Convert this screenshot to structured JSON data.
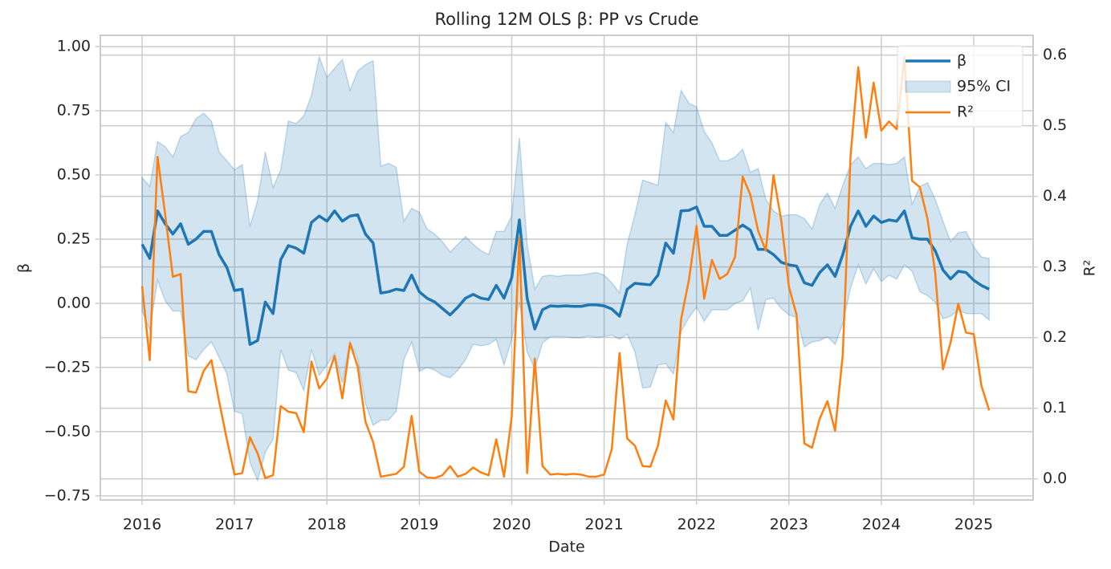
{
  "chart_data": {
    "type": "line",
    "title": "Rolling 12M OLS β: PP vs Crude",
    "xlabel": "Date",
    "ylabel": "β",
    "y2label": "R²",
    "x": [
      2016.0,
      2016.083,
      2016.167,
      2016.25,
      2016.333,
      2016.417,
      2016.5,
      2016.583,
      2016.667,
      2016.75,
      2016.833,
      2016.917,
      2017.0,
      2017.083,
      2017.167,
      2017.25,
      2017.333,
      2017.417,
      2017.5,
      2017.583,
      2017.667,
      2017.75,
      2017.833,
      2017.917,
      2018.0,
      2018.083,
      2018.167,
      2018.25,
      2018.333,
      2018.417,
      2018.5,
      2018.583,
      2018.667,
      2018.75,
      2018.833,
      2018.917,
      2019.0,
      2019.083,
      2019.167,
      2019.25,
      2019.333,
      2019.417,
      2019.5,
      2019.583,
      2019.667,
      2019.75,
      2019.833,
      2019.917,
      2020.0,
      2020.083,
      2020.167,
      2020.25,
      2020.333,
      2020.417,
      2020.5,
      2020.583,
      2020.667,
      2020.75,
      2020.833,
      2020.917,
      2021.0,
      2021.083,
      2021.167,
      2021.25,
      2021.333,
      2021.417,
      2021.5,
      2021.583,
      2021.667,
      2021.75,
      2021.833,
      2021.917,
      2022.0,
      2022.083,
      2022.167,
      2022.25,
      2022.333,
      2022.417,
      2022.5,
      2022.583,
      2022.667,
      2022.75,
      2022.833,
      2022.917,
      2023.0,
      2023.083,
      2023.167,
      2023.25,
      2023.333,
      2023.417,
      2023.5,
      2023.583,
      2023.667,
      2023.75,
      2023.833,
      2023.917,
      2024.0,
      2024.083,
      2024.167,
      2024.25,
      2024.333,
      2024.417,
      2024.5,
      2024.583,
      2024.667,
      2024.75,
      2024.833,
      2024.917,
      2025.0,
      2025.083,
      2025.167
    ],
    "series": [
      {
        "name": "β",
        "color": "#1f77b4",
        "values": [
          0.23,
          0.175,
          0.36,
          0.31,
          0.27,
          0.31,
          0.23,
          0.25,
          0.28,
          0.28,
          0.19,
          0.14,
          0.05,
          0.055,
          -0.16,
          -0.145,
          0.005,
          -0.04,
          0.17,
          0.225,
          0.215,
          0.195,
          0.315,
          0.34,
          0.32,
          0.36,
          0.32,
          0.34,
          0.345,
          0.27,
          0.235,
          0.04,
          0.045,
          0.055,
          0.05,
          0.11,
          0.045,
          0.02,
          0.005,
          -0.02,
          -0.045,
          -0.015,
          0.02,
          0.035,
          0.02,
          0.015,
          0.07,
          0.02,
          0.1,
          0.325,
          0.02,
          -0.1,
          -0.025,
          -0.01,
          -0.012,
          -0.01,
          -0.012,
          -0.012,
          -0.006,
          -0.006,
          -0.01,
          -0.022,
          -0.05,
          0.055,
          0.078,
          0.075,
          0.072,
          0.11,
          0.235,
          0.195,
          0.36,
          0.362,
          0.375,
          0.3,
          0.3,
          0.265,
          0.265,
          0.285,
          0.305,
          0.285,
          0.21,
          0.21,
          0.19,
          0.16,
          0.15,
          0.145,
          0.08,
          0.07,
          0.12,
          0.15,
          0.105,
          0.19,
          0.3,
          0.36,
          0.3,
          0.34,
          0.315,
          0.325,
          0.32,
          0.36,
          0.255,
          0.25,
          0.25,
          0.205,
          0.13,
          0.095,
          0.125,
          0.12,
          0.09,
          0.07,
          0.055
        ]
      },
      {
        "name": "95% CI",
        "color": "#1f77b4",
        "upper": [
          0.49,
          0.455,
          0.63,
          0.61,
          0.57,
          0.65,
          0.665,
          0.72,
          0.74,
          0.71,
          0.59,
          0.555,
          0.52,
          0.54,
          0.3,
          0.4,
          0.59,
          0.45,
          0.52,
          0.71,
          0.7,
          0.73,
          0.81,
          0.96,
          0.88,
          0.915,
          0.95,
          0.83,
          0.905,
          0.93,
          0.945,
          0.535,
          0.545,
          0.53,
          0.32,
          0.37,
          0.355,
          0.29,
          0.27,
          0.24,
          0.2,
          0.23,
          0.26,
          0.23,
          0.205,
          0.19,
          0.28,
          0.28,
          0.34,
          0.645,
          0.23,
          0.055,
          0.105,
          0.11,
          0.105,
          0.11,
          0.11,
          0.11,
          0.115,
          0.12,
          0.11,
          0.08,
          0.04,
          0.23,
          0.345,
          0.48,
          0.47,
          0.46,
          0.705,
          0.665,
          0.83,
          0.78,
          0.765,
          0.67,
          0.625,
          0.555,
          0.555,
          0.57,
          0.6,
          0.51,
          0.525,
          0.405,
          0.36,
          0.34,
          0.345,
          0.345,
          0.33,
          0.29,
          0.385,
          0.43,
          0.37,
          0.46,
          0.54,
          0.57,
          0.525,
          0.545,
          0.545,
          0.54,
          0.545,
          0.57,
          0.385,
          0.455,
          0.47,
          0.405,
          0.32,
          0.24,
          0.275,
          0.28,
          0.22,
          0.18,
          0.175
        ],
        "lower": [
          -0.03,
          -0.105,
          0.09,
          0.01,
          -0.03,
          -0.03,
          -0.205,
          -0.22,
          -0.18,
          -0.15,
          -0.21,
          -0.275,
          -0.42,
          -0.43,
          -0.62,
          -0.69,
          -0.58,
          -0.53,
          -0.18,
          -0.26,
          -0.27,
          -0.34,
          -0.18,
          -0.28,
          -0.24,
          -0.195,
          -0.31,
          -0.15,
          -0.215,
          -0.39,
          -0.475,
          -0.455,
          -0.455,
          -0.42,
          -0.22,
          -0.15,
          -0.265,
          -0.25,
          -0.26,
          -0.28,
          -0.29,
          -0.26,
          -0.22,
          -0.16,
          -0.165,
          -0.16,
          -0.14,
          -0.24,
          -0.14,
          0.005,
          -0.19,
          -0.255,
          -0.155,
          -0.13,
          -0.129,
          -0.13,
          -0.134,
          -0.134,
          -0.127,
          -0.132,
          -0.13,
          -0.124,
          -0.14,
          -0.12,
          -0.189,
          -0.33,
          -0.326,
          -0.24,
          -0.235,
          -0.275,
          -0.11,
          -0.056,
          -0.015,
          -0.07,
          -0.025,
          -0.025,
          -0.025,
          0,
          0.01,
          0.06,
          -0.105,
          0.015,
          0.02,
          -0.02,
          -0.045,
          -0.055,
          -0.17,
          -0.15,
          -0.145,
          -0.13,
          -0.16,
          -0.08,
          0.06,
          0.15,
          0.075,
          0.135,
          0.085,
          0.11,
          0.095,
          0.15,
          0.125,
          0.045,
          0.03,
          0.005,
          -0.06,
          -0.05,
          -0.025,
          -0.04,
          -0.04,
          -0.04,
          -0.065
        ]
      },
      {
        "name": "R²",
        "color": "#ff7f0e",
        "axis": "y2",
        "values": [
          0.273,
          0.168,
          0.456,
          0.374,
          0.286,
          0.29,
          0.124,
          0.122,
          0.153,
          0.168,
          0.11,
          0.056,
          0.006,
          0.008,
          0.059,
          0.036,
          0.001,
          0.005,
          0.103,
          0.095,
          0.093,
          0.066,
          0.166,
          0.128,
          0.142,
          0.174,
          0.114,
          0.192,
          0.159,
          0.081,
          0.052,
          0.003,
          0.005,
          0.007,
          0.017,
          0.089,
          0.01,
          0.002,
          0.001,
          0.005,
          0.018,
          0.003,
          0.007,
          0.016,
          0.009,
          0.005,
          0.056,
          0.003,
          0.088,
          0.341,
          0.008,
          0.17,
          0.018,
          0.006,
          0.007,
          0.006,
          0.007,
          0.006,
          0.003,
          0.003,
          0.006,
          0.042,
          0.178,
          0.057,
          0.047,
          0.018,
          0.017,
          0.047,
          0.111,
          0.084,
          0.226,
          0.281,
          0.358,
          0.255,
          0.31,
          0.283,
          0.29,
          0.314,
          0.428,
          0.402,
          0.351,
          0.323,
          0.43,
          0.366,
          0.272,
          0.232,
          0.05,
          0.044,
          0.085,
          0.11,
          0.068,
          0.176,
          0.457,
          0.583,
          0.483,
          0.561,
          0.493,
          0.506,
          0.495,
          0.597,
          0.422,
          0.413,
          0.368,
          0.292,
          0.155,
          0.193,
          0.248,
          0.207,
          0.205,
          0.132,
          0.097
        ]
      }
    ],
    "xlim": [
      2015.548,
      2025.643
    ],
    "xticks": [
      2016,
      2017,
      2018,
      2019,
      2020,
      2021,
      2022,
      2023,
      2024,
      2025
    ],
    "ylim": [
      -0.766,
      1.044
    ],
    "yticks": [
      {
        "value": -0.75,
        "label": "−0.75"
      },
      {
        "value": -0.5,
        "label": "−0.50"
      },
      {
        "value": -0.25,
        "label": "−0.25"
      },
      {
        "value": 0,
        "label": "0.00"
      },
      0.25,
      {
        "value": 0.5,
        "label": "0.50"
      },
      0.75,
      {
        "value": 1,
        "label": "1.00"
      }
    ],
    "y2lim": [
      -0.03,
      0.628
    ],
    "y2ticks": [
      {
        "value": 0,
        "label": "0.0"
      },
      0.1,
      0.2,
      0.3,
      0.4,
      0.5,
      0.6
    ],
    "grid": true,
    "legend": "upper right"
  }
}
